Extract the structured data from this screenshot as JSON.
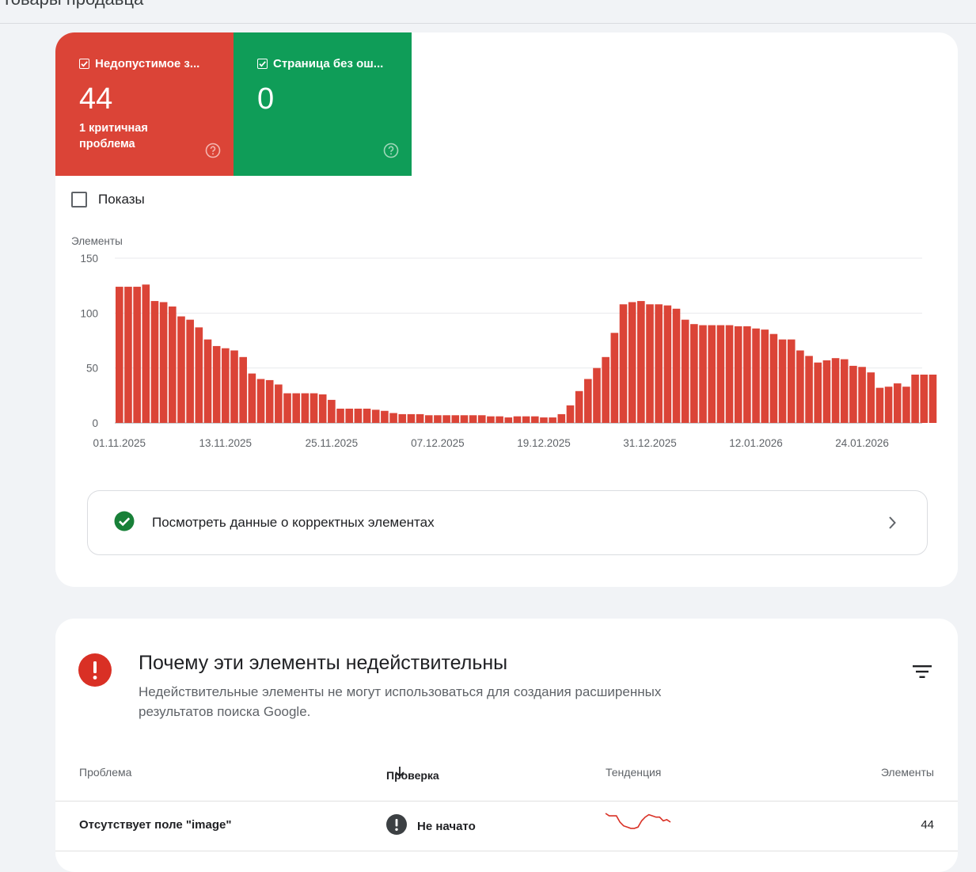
{
  "page": {
    "title": "Товары продавца"
  },
  "tiles": [
    {
      "label": "Недопустимое з...",
      "value": "44",
      "sub": "1 критичная проблема",
      "color": "#db4437"
    },
    {
      "label": "Страница без ош...",
      "value": "0",
      "sub": "",
      "color": "#0f9d58"
    }
  ],
  "shows_label": "Показы",
  "chart_data": {
    "type": "bar",
    "title": "",
    "ylabel": "Элементы",
    "xlabel": "",
    "ylim": [
      0,
      150
    ],
    "yticks": [
      0,
      50,
      100,
      150
    ],
    "grid": true,
    "color": "#db4437",
    "x_start": "01.11.2025",
    "x_ticks": [
      "01.11.2025",
      "13.11.2025",
      "25.11.2025",
      "07.12.2025",
      "19.12.2025",
      "31.12.2025",
      "12.01.2026",
      "24.01.2026"
    ],
    "values": [
      124,
      124,
      124,
      126,
      111,
      110,
      106,
      97,
      94,
      87,
      76,
      70,
      68,
      66,
      60,
      45,
      40,
      39,
      35,
      27,
      27,
      27,
      27,
      26,
      21,
      13,
      13,
      13,
      13,
      12,
      11,
      9,
      8,
      8,
      8,
      7,
      7,
      7,
      7,
      7,
      7,
      7,
      6,
      6,
      5,
      6,
      6,
      6,
      5,
      5,
      8,
      16,
      29,
      40,
      50,
      60,
      82,
      108,
      110,
      111,
      108,
      108,
      107,
      104,
      94,
      90,
      89,
      89,
      89,
      89,
      88,
      88,
      86,
      85,
      81,
      76,
      76,
      66,
      61,
      55,
      57,
      59,
      58,
      52,
      51,
      46,
      32,
      33,
      36,
      33,
      44,
      44,
      44
    ]
  },
  "link_row": {
    "label": "Посмотреть данные о корректных элементах"
  },
  "issues": {
    "title": "Почему эти элементы недействительны",
    "description": "Недействительные элементы не могут использоваться для создания расширенных результатов поиска Google.",
    "columns": {
      "problem": "Проблема",
      "check": "Проверка",
      "trend": "Тенденция",
      "items": "Элементы"
    },
    "rows": [
      {
        "problem": "Отсутствует поле \"image\"",
        "check": "Не начато",
        "trend": [
          14,
          12,
          12,
          12,
          7,
          4,
          3,
          2,
          2,
          3,
          8,
          11,
          13,
          12,
          11,
          11,
          8,
          9,
          7
        ],
        "items": "44"
      }
    ]
  }
}
